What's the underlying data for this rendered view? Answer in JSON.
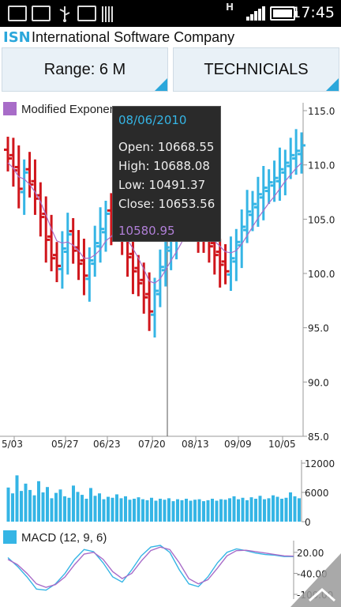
{
  "status_bar": {
    "time": "17:45",
    "network_label": "H",
    "icons": [
      "gallery-icon",
      "code-icon",
      "usb-icon",
      "code-icon",
      "barcode-icon",
      "signal-icon",
      "battery-icon"
    ]
  },
  "header": {
    "symbol": "ISN",
    "company": "International Software Company"
  },
  "buttons": {
    "range": "Range: 6 M",
    "technicials": "TECHNICIALS"
  },
  "legend": {
    "indicator": "Modified Exponential Moving Average",
    "macd": "MACD (12, 9, 6)"
  },
  "tooltip": {
    "date": "08/06/2010",
    "open": "Open: 10668.55",
    "high": "High: 10688.08",
    "low": "Low: 10491.37",
    "close": "Close: 10653.56",
    "indicator_value": "10580.95"
  },
  "colors": {
    "accent": "#2ba7db",
    "up": "#35b5e5",
    "down": "#d0161c",
    "indicator": "#a86cc8",
    "tooltip_bg": "#2a2a2a"
  },
  "chart_data": [
    {
      "type": "ohlc",
      "title": "",
      "x_ticks": [
        "5/03",
        "05/27",
        "06/23",
        "07/20",
        "08/13",
        "09/09",
        "10/05"
      ],
      "y_ticks": [
        85.0,
        90.0,
        95.0,
        100.0,
        105.0,
        110.0,
        115.0
      ],
      "y_tick_labels": [
        "85.0",
        "90.0",
        "95.0",
        "100.0",
        "105.0",
        "110.0",
        "115.0"
      ],
      "ylim": [
        85,
        115
      ],
      "series": [
        {
          "name": "",
          "close": [
            110.6,
            109.5,
            107.8,
            109.3,
            108.2,
            106.9,
            105.2,
            103.1,
            101.4,
            100.7,
            102.3,
            103.6,
            102.1,
            100.9,
            99.8,
            101.2,
            102.8,
            104.1,
            105.5,
            104.7,
            106.0,
            103.2,
            101.5,
            100.2,
            99.1,
            97.8,
            96.5,
            98.4,
            100.6,
            102.4,
            103.7,
            104.6,
            105.9,
            106.2,
            105.1,
            104.0,
            103.1,
            102.5,
            101.7,
            100.8,
            100.2,
            101.4,
            102.9,
            104.3,
            105.7,
            106.4,
            107.3,
            107.9,
            108.4,
            108.8,
            109.6,
            110.2,
            110.9,
            111.3,
            111.8
          ]
        },
        {
          "name": "Modified Exponential Moving Average",
          "values": [
            110.2,
            109.7,
            108.9,
            108.7,
            108.2,
            107.5,
            106.6,
            105.4,
            104.1,
            103.0,
            102.8,
            102.9,
            102.6,
            102.1,
            101.4,
            101.4,
            101.7,
            102.2,
            103.0,
            103.4,
            104.0,
            103.7,
            103.1,
            102.3,
            101.4,
            100.4,
            99.3,
            99.1,
            99.5,
            100.3,
            101.2,
            102.0,
            102.9,
            103.6,
            103.9,
            103.9,
            103.7,
            103.4,
            103.0,
            102.5,
            102.0,
            101.9,
            102.1,
            102.7,
            103.5,
            104.3,
            105.1,
            105.8,
            106.5,
            107.1,
            107.8,
            108.5,
            109.1,
            109.7,
            110.2
          ]
        }
      ]
    },
    {
      "type": "bar",
      "title": "",
      "y_ticks": [
        0,
        6000,
        12000
      ],
      "y_tick_labels": [
        "0",
        "6000",
        "12000"
      ],
      "ylim": [
        0,
        12000
      ],
      "values": [
        7000,
        5800,
        9500,
        6300,
        7800,
        6500,
        5400,
        8300,
        6000,
        7100,
        4800,
        5900,
        6600,
        5200,
        4900,
        7400,
        6100,
        5500,
        4700,
        6900,
        5300,
        5800,
        4600,
        5100,
        4900,
        5600,
        4800,
        5200,
        4500,
        4700,
        5000,
        4600,
        4400,
        4900,
        4300,
        4700,
        4500,
        4800,
        4200,
        4600,
        4400,
        4700,
        4300,
        4500,
        4600,
        4200,
        4400,
        4700,
        4300,
        4600,
        4500,
        4800,
        5200,
        4600,
        4900,
        4400,
        5000,
        4700,
        5300,
        4600,
        4800,
        5400,
        5100,
        4700,
        4900,
        6000,
        5200,
        4800
      ]
    },
    {
      "type": "line",
      "title": "MACD (12, 9, 6)",
      "y_ticks": [
        20,
        -40,
        -100
      ],
      "y_tick_labels": [
        "20.00",
        "-40.00",
        "-100.00"
      ],
      "ylim": [
        -100,
        40
      ],
      "series": [
        {
          "name": "MACD",
          "values": [
            5,
            -20,
            -50,
            -85,
            -88,
            -70,
            -40,
            0,
            28,
            22,
            -10,
            -50,
            -65,
            -30,
            10,
            35,
            40,
            20,
            -30,
            -70,
            -78,
            -50,
            -10,
            20,
            30,
            25,
            18,
            14,
            12,
            8,
            8
          ]
        },
        {
          "name": "Signal",
          "values": [
            0,
            -15,
            -40,
            -70,
            -80,
            -72,
            -50,
            -15,
            15,
            20,
            0,
            -35,
            -55,
            -40,
            -5,
            25,
            35,
            28,
            -10,
            -55,
            -70,
            -58,
            -25,
            10,
            25,
            26,
            22,
            18,
            14,
            10,
            9
          ]
        }
      ]
    }
  ]
}
